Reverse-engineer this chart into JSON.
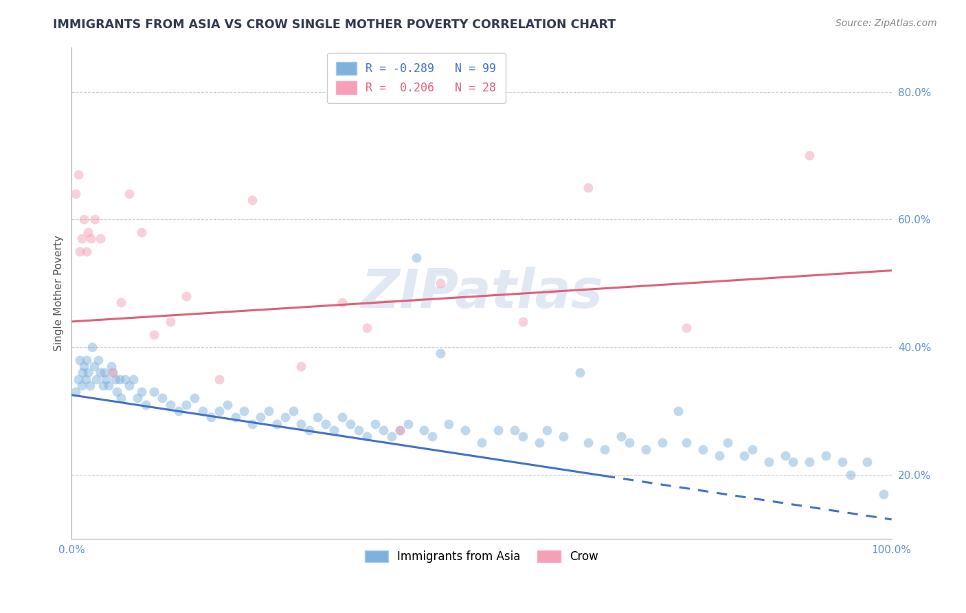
{
  "title": "IMMIGRANTS FROM ASIA VS CROW SINGLE MOTHER POVERTY CORRELATION CHART",
  "source_text": "Source: ZipAtlas.com",
  "ylabel": "Single Mother Poverty",
  "y_ticks": [
    20.0,
    40.0,
    60.0,
    80.0
  ],
  "y_tick_labels": [
    "20.0%",
    "40.0%",
    "60.0%",
    "80.0%"
  ],
  "x_tick_labels": [
    "0.0%",
    "100.0%"
  ],
  "xlim": [
    0.0,
    100.0
  ],
  "ylim": [
    10.0,
    87.0
  ],
  "blue_R": -0.289,
  "blue_N": 99,
  "pink_R": 0.206,
  "pink_N": 28,
  "blue_color": "#7EB2DD",
  "pink_color": "#F4A0B5",
  "blue_line_color": "#4472C4",
  "pink_line_color": "#E0607A",
  "title_color": "#2E3A4F",
  "axis_label_color": "#555555",
  "tick_color": "#6090CC",
  "grid_color": "#CCCCCC",
  "watermark_color": "#CCDAEB",
  "legend_label_blue": "Immigrants from Asia",
  "legend_label_pink": "Crow",
  "blue_scatter_x": [
    0.5,
    0.8,
    1.0,
    1.2,
    1.3,
    1.5,
    1.7,
    1.8,
    2.0,
    2.2,
    2.5,
    2.7,
    3.0,
    3.2,
    3.5,
    3.8,
    4.0,
    4.2,
    4.5,
    4.8,
    5.0,
    5.3,
    5.5,
    5.8,
    6.0,
    6.5,
    7.0,
    7.5,
    8.0,
    8.5,
    9.0,
    10.0,
    11.0,
    12.0,
    13.0,
    14.0,
    15.0,
    16.0,
    17.0,
    18.0,
    19.0,
    20.0,
    21.0,
    22.0,
    23.0,
    24.0,
    25.0,
    26.0,
    27.0,
    28.0,
    29.0,
    30.0,
    31.0,
    32.0,
    33.0,
    34.0,
    35.0,
    36.0,
    37.0,
    38.0,
    39.0,
    40.0,
    41.0,
    42.0,
    43.0,
    44.0,
    45.0,
    46.0,
    48.0,
    50.0,
    52.0,
    54.0,
    55.0,
    57.0,
    58.0,
    60.0,
    62.0,
    63.0,
    65.0,
    67.0,
    68.0,
    70.0,
    72.0,
    74.0,
    75.0,
    77.0,
    79.0,
    80.0,
    82.0,
    83.0,
    85.0,
    87.0,
    88.0,
    90.0,
    92.0,
    94.0,
    95.0,
    97.0,
    99.0
  ],
  "blue_scatter_y": [
    33.0,
    35.0,
    38.0,
    34.0,
    36.0,
    37.0,
    35.0,
    38.0,
    36.0,
    34.0,
    40.0,
    37.0,
    35.0,
    38.0,
    36.0,
    34.0,
    36.0,
    35.0,
    34.0,
    37.0,
    36.0,
    35.0,
    33.0,
    35.0,
    32.0,
    35.0,
    34.0,
    35.0,
    32.0,
    33.0,
    31.0,
    33.0,
    32.0,
    31.0,
    30.0,
    31.0,
    32.0,
    30.0,
    29.0,
    30.0,
    31.0,
    29.0,
    30.0,
    28.0,
    29.0,
    30.0,
    28.0,
    29.0,
    30.0,
    28.0,
    27.0,
    29.0,
    28.0,
    27.0,
    29.0,
    28.0,
    27.0,
    26.0,
    28.0,
    27.0,
    26.0,
    27.0,
    28.0,
    54.0,
    27.0,
    26.0,
    39.0,
    28.0,
    27.0,
    25.0,
    27.0,
    27.0,
    26.0,
    25.0,
    27.0,
    26.0,
    36.0,
    25.0,
    24.0,
    26.0,
    25.0,
    24.0,
    25.0,
    30.0,
    25.0,
    24.0,
    23.0,
    25.0,
    23.0,
    24.0,
    22.0,
    23.0,
    22.0,
    22.0,
    23.0,
    22.0,
    20.0,
    22.0,
    17.0
  ],
  "pink_scatter_x": [
    0.5,
    0.8,
    1.0,
    1.2,
    1.5,
    1.8,
    2.0,
    2.3,
    2.8,
    3.5,
    5.0,
    6.0,
    7.0,
    8.5,
    10.0,
    12.0,
    14.0,
    18.0,
    22.0,
    28.0,
    33.0,
    36.0,
    40.0,
    45.0,
    55.0,
    63.0,
    75.0,
    90.0
  ],
  "pink_scatter_y": [
    64.0,
    67.0,
    55.0,
    57.0,
    60.0,
    55.0,
    58.0,
    57.0,
    60.0,
    57.0,
    36.0,
    47.0,
    64.0,
    58.0,
    42.0,
    44.0,
    48.0,
    35.0,
    63.0,
    37.0,
    47.0,
    43.0,
    27.0,
    50.0,
    44.0,
    65.0,
    43.0,
    70.0
  ],
  "blue_trend_x0": 0.0,
  "blue_trend_x1": 100.0,
  "blue_trend_y0": 32.5,
  "blue_trend_y1": 13.0,
  "blue_trend_solid_end": 65.0,
  "pink_trend_x0": 0.0,
  "pink_trend_x1": 100.0,
  "pink_trend_y0": 44.0,
  "pink_trend_y1": 52.0,
  "bg_color": "#FFFFFF",
  "scatter_size": 100,
  "scatter_alpha": 0.5,
  "scatter_linewidth": 0.0
}
